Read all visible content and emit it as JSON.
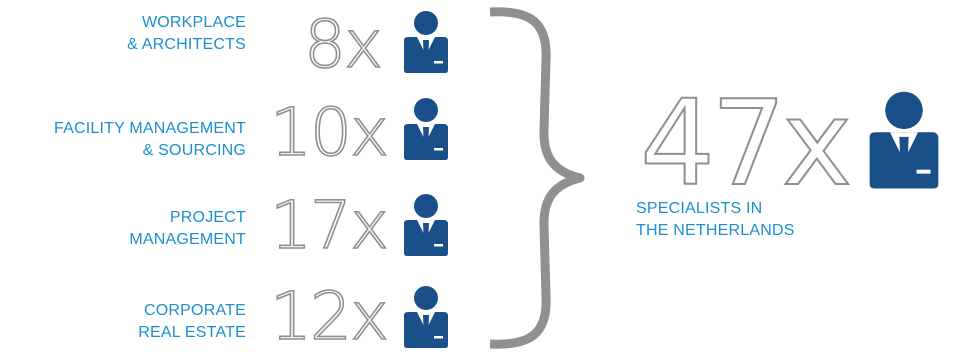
{
  "groups": [
    {
      "label_line1": "WORKPLACE",
      "label_line2": "& ARCHITECTS",
      "count": "8x"
    },
    {
      "label_line1": "FACILITY MANAGEMENT",
      "label_line2": "& SOURCING",
      "count": "10x"
    },
    {
      "label_line1": "PROJECT",
      "label_line2": "MANAGEMENT",
      "count": "17x"
    },
    {
      "label_line1": "CORPORATE",
      "label_line2": "REAL ESTATE",
      "count": "12x"
    }
  ],
  "total": {
    "count": "47x",
    "label_line1": "SPECIALISTS IN",
    "label_line2": "THE NETHERLANDS"
  },
  "icons": {
    "person": "person-businessman-icon",
    "brace": "curly-brace"
  },
  "colors": {
    "label_blue": "#1b8fcf",
    "icon_navy": "#1a4f8a",
    "count_gray": "#8f8f8f"
  }
}
